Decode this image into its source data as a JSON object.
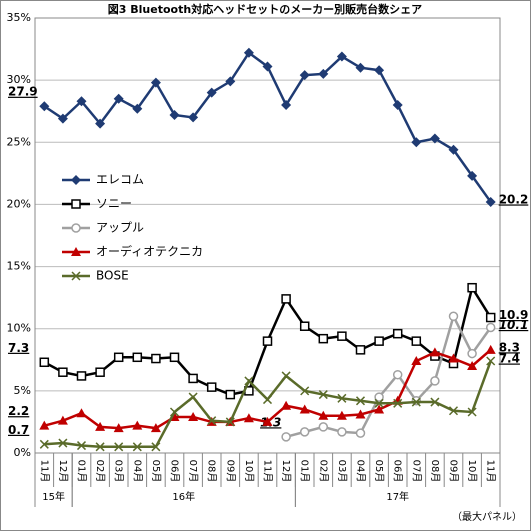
{
  "chart_data": {
    "type": "line",
    "title": "図3 Bluetooth対応ヘッドセットのメーカー別販売台数シェア",
    "note": "（最大パネル）",
    "categories": [
      "11月",
      "12月",
      "01月",
      "02月",
      "03月",
      "04月",
      "05月",
      "06月",
      "07月",
      "08月",
      "09月",
      "10月",
      "11月",
      "12月",
      "01月",
      "02月",
      "03月",
      "04月",
      "05月",
      "06月",
      "07月",
      "08月",
      "09月",
      "10月",
      "11月"
    ],
    "groups": [
      {
        "label": "15年",
        "size": 2
      },
      {
        "label": "16年",
        "size": 12
      },
      {
        "label": "17年",
        "size": 11
      }
    ],
    "ylim": [
      0,
      35
    ],
    "yticks": [
      {
        "value": 0,
        "label": "0%"
      },
      {
        "value": 5,
        "label": "5%"
      },
      {
        "value": 10,
        "label": "10%"
      },
      {
        "value": 15,
        "label": "15%"
      },
      {
        "value": 20,
        "label": "20%"
      },
      {
        "value": 25,
        "label": "25%"
      },
      {
        "value": 30,
        "label": "30%"
      },
      {
        "value": 35,
        "label": "35%"
      }
    ],
    "grid": true,
    "series": [
      {
        "name": "エレコム",
        "color": "#1f3b73",
        "marker": "diamond",
        "values": [
          27.9,
          26.9,
          28.3,
          26.5,
          28.5,
          27.7,
          29.8,
          27.2,
          27.0,
          29.0,
          29.9,
          32.2,
          31.1,
          28.0,
          30.4,
          30.5,
          31.9,
          31.0,
          30.8,
          28.0,
          25.0,
          25.3,
          24.4,
          22.3,
          20.2
        ],
        "value_labels": [
          "27.9",
          null,
          null,
          null,
          null,
          null,
          null,
          null,
          null,
          null,
          null,
          null,
          null,
          null,
          null,
          null,
          null,
          null,
          null,
          null,
          null,
          null,
          null,
          null,
          "20.2"
        ]
      },
      {
        "name": "ソニー",
        "color": "#000000",
        "marker": "square",
        "values": [
          7.3,
          6.5,
          6.2,
          6.5,
          7.7,
          7.7,
          7.6,
          7.7,
          6.0,
          5.3,
          4.7,
          5.0,
          9.0,
          12.4,
          10.2,
          9.2,
          9.4,
          8.3,
          9.0,
          9.6,
          9.0,
          7.8,
          7.2,
          13.3,
          10.9
        ],
        "value_labels": [
          "7.3",
          null,
          null,
          null,
          null,
          null,
          null,
          null,
          null,
          null,
          null,
          null,
          null,
          null,
          null,
          null,
          null,
          null,
          null,
          null,
          null,
          null,
          null,
          null,
          "10.9"
        ]
      },
      {
        "name": "アップル",
        "color": "#a0a0a0",
        "marker": "circle",
        "values": [
          null,
          null,
          null,
          null,
          null,
          null,
          null,
          null,
          null,
          null,
          null,
          null,
          null,
          1.3,
          1.7,
          2.1,
          1.7,
          1.6,
          4.5,
          6.3,
          4.2,
          5.8,
          11.0,
          8.0,
          10.1
        ],
        "value_labels": [
          null,
          null,
          null,
          null,
          null,
          null,
          null,
          null,
          null,
          null,
          null,
          null,
          null,
          "1.3",
          null,
          null,
          null,
          null,
          null,
          null,
          null,
          null,
          null,
          null,
          "10.1"
        ]
      },
      {
        "name": "オーディオテクニカ",
        "color": "#c00000",
        "marker": "triangle",
        "values": [
          2.2,
          2.6,
          3.2,
          2.1,
          2.0,
          2.2,
          2.0,
          2.9,
          2.9,
          2.5,
          2.5,
          2.8,
          2.5,
          3.8,
          3.5,
          3.0,
          3.0,
          3.1,
          3.5,
          4.2,
          7.4,
          8.1,
          7.6,
          7.0,
          8.3
        ],
        "value_labels": [
          "2.2",
          null,
          null,
          null,
          null,
          null,
          null,
          null,
          null,
          null,
          null,
          null,
          null,
          null,
          null,
          null,
          null,
          null,
          null,
          null,
          null,
          null,
          null,
          null,
          "8.3"
        ]
      },
      {
        "name": "BOSE",
        "color": "#5a6b2a",
        "marker": "x",
        "values": [
          0.7,
          0.8,
          0.6,
          0.5,
          0.5,
          0.5,
          0.5,
          3.3,
          4.5,
          2.6,
          2.5,
          5.8,
          4.3,
          6.2,
          5.0,
          4.7,
          4.4,
          4.2,
          4.0,
          4.0,
          4.1,
          4.1,
          3.4,
          3.3,
          7.4
        ],
        "value_labels": [
          "0.7",
          null,
          null,
          null,
          null,
          null,
          null,
          null,
          null,
          null,
          null,
          null,
          null,
          null,
          null,
          null,
          null,
          null,
          null,
          null,
          null,
          null,
          null,
          null,
          "7.4"
        ]
      }
    ]
  }
}
